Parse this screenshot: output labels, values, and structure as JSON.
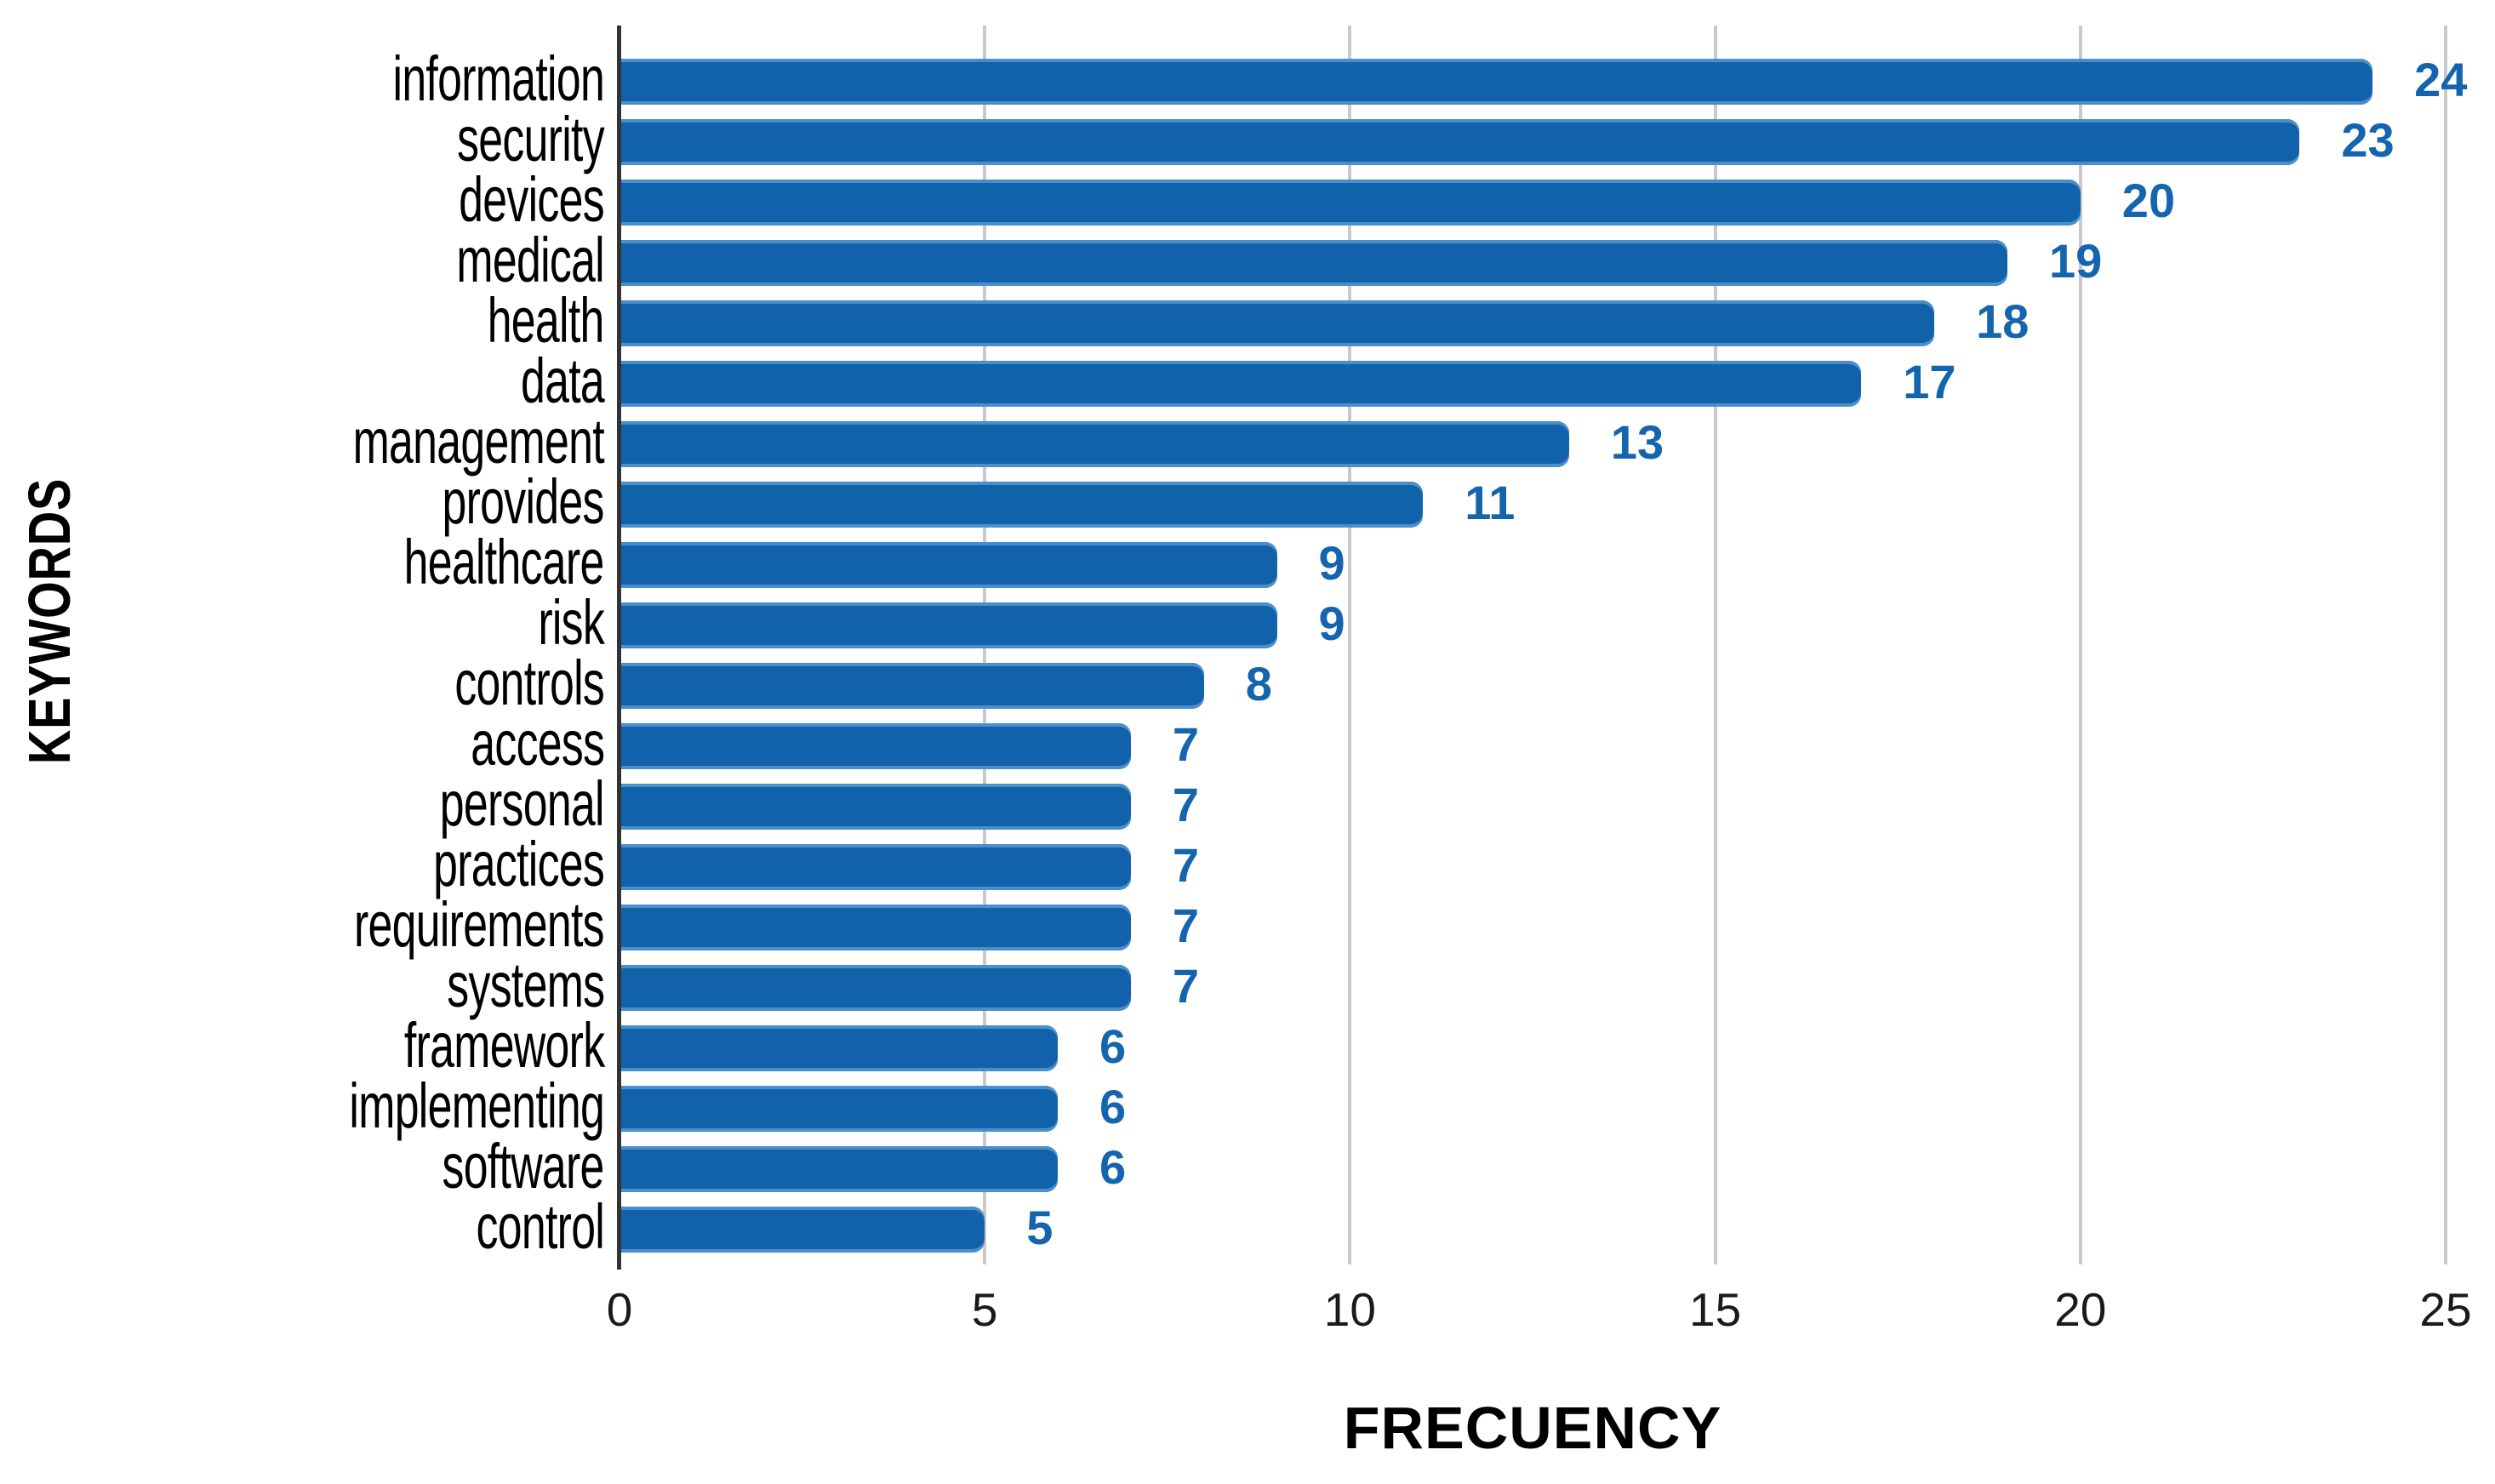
{
  "chart_data": {
    "type": "bar",
    "orientation": "horizontal",
    "title": "",
    "xlabel": "FRECUENCY",
    "ylabel": "KEYWORDS",
    "categories": [
      "information",
      "security",
      "devices",
      "medical",
      "health",
      "data",
      "management",
      "provides",
      "healthcare",
      "risk",
      "controls",
      "access",
      "personal",
      "practices",
      "requirements",
      "systems",
      "framework",
      "implementing",
      "software",
      "control"
    ],
    "values": [
      24,
      23,
      20,
      19,
      18,
      17,
      13,
      11,
      9,
      9,
      8,
      7,
      7,
      7,
      7,
      7,
      6,
      6,
      6,
      5
    ],
    "x_ticks": [
      0,
      5,
      10,
      15,
      20,
      25
    ],
    "xlim": [
      0,
      25
    ],
    "grid": "vertical-gridlines-only",
    "legend": "none",
    "value_labels": "shown-at-bar-end",
    "colors": {
      "bar": "#1261AB",
      "bar_edge_highlight": "#4A8FC9",
      "value_label": "#1565AE",
      "gridline": "#C9C9C9",
      "axis_line": "#333333",
      "text": "#000000",
      "background": "#FFFFFF"
    }
  }
}
